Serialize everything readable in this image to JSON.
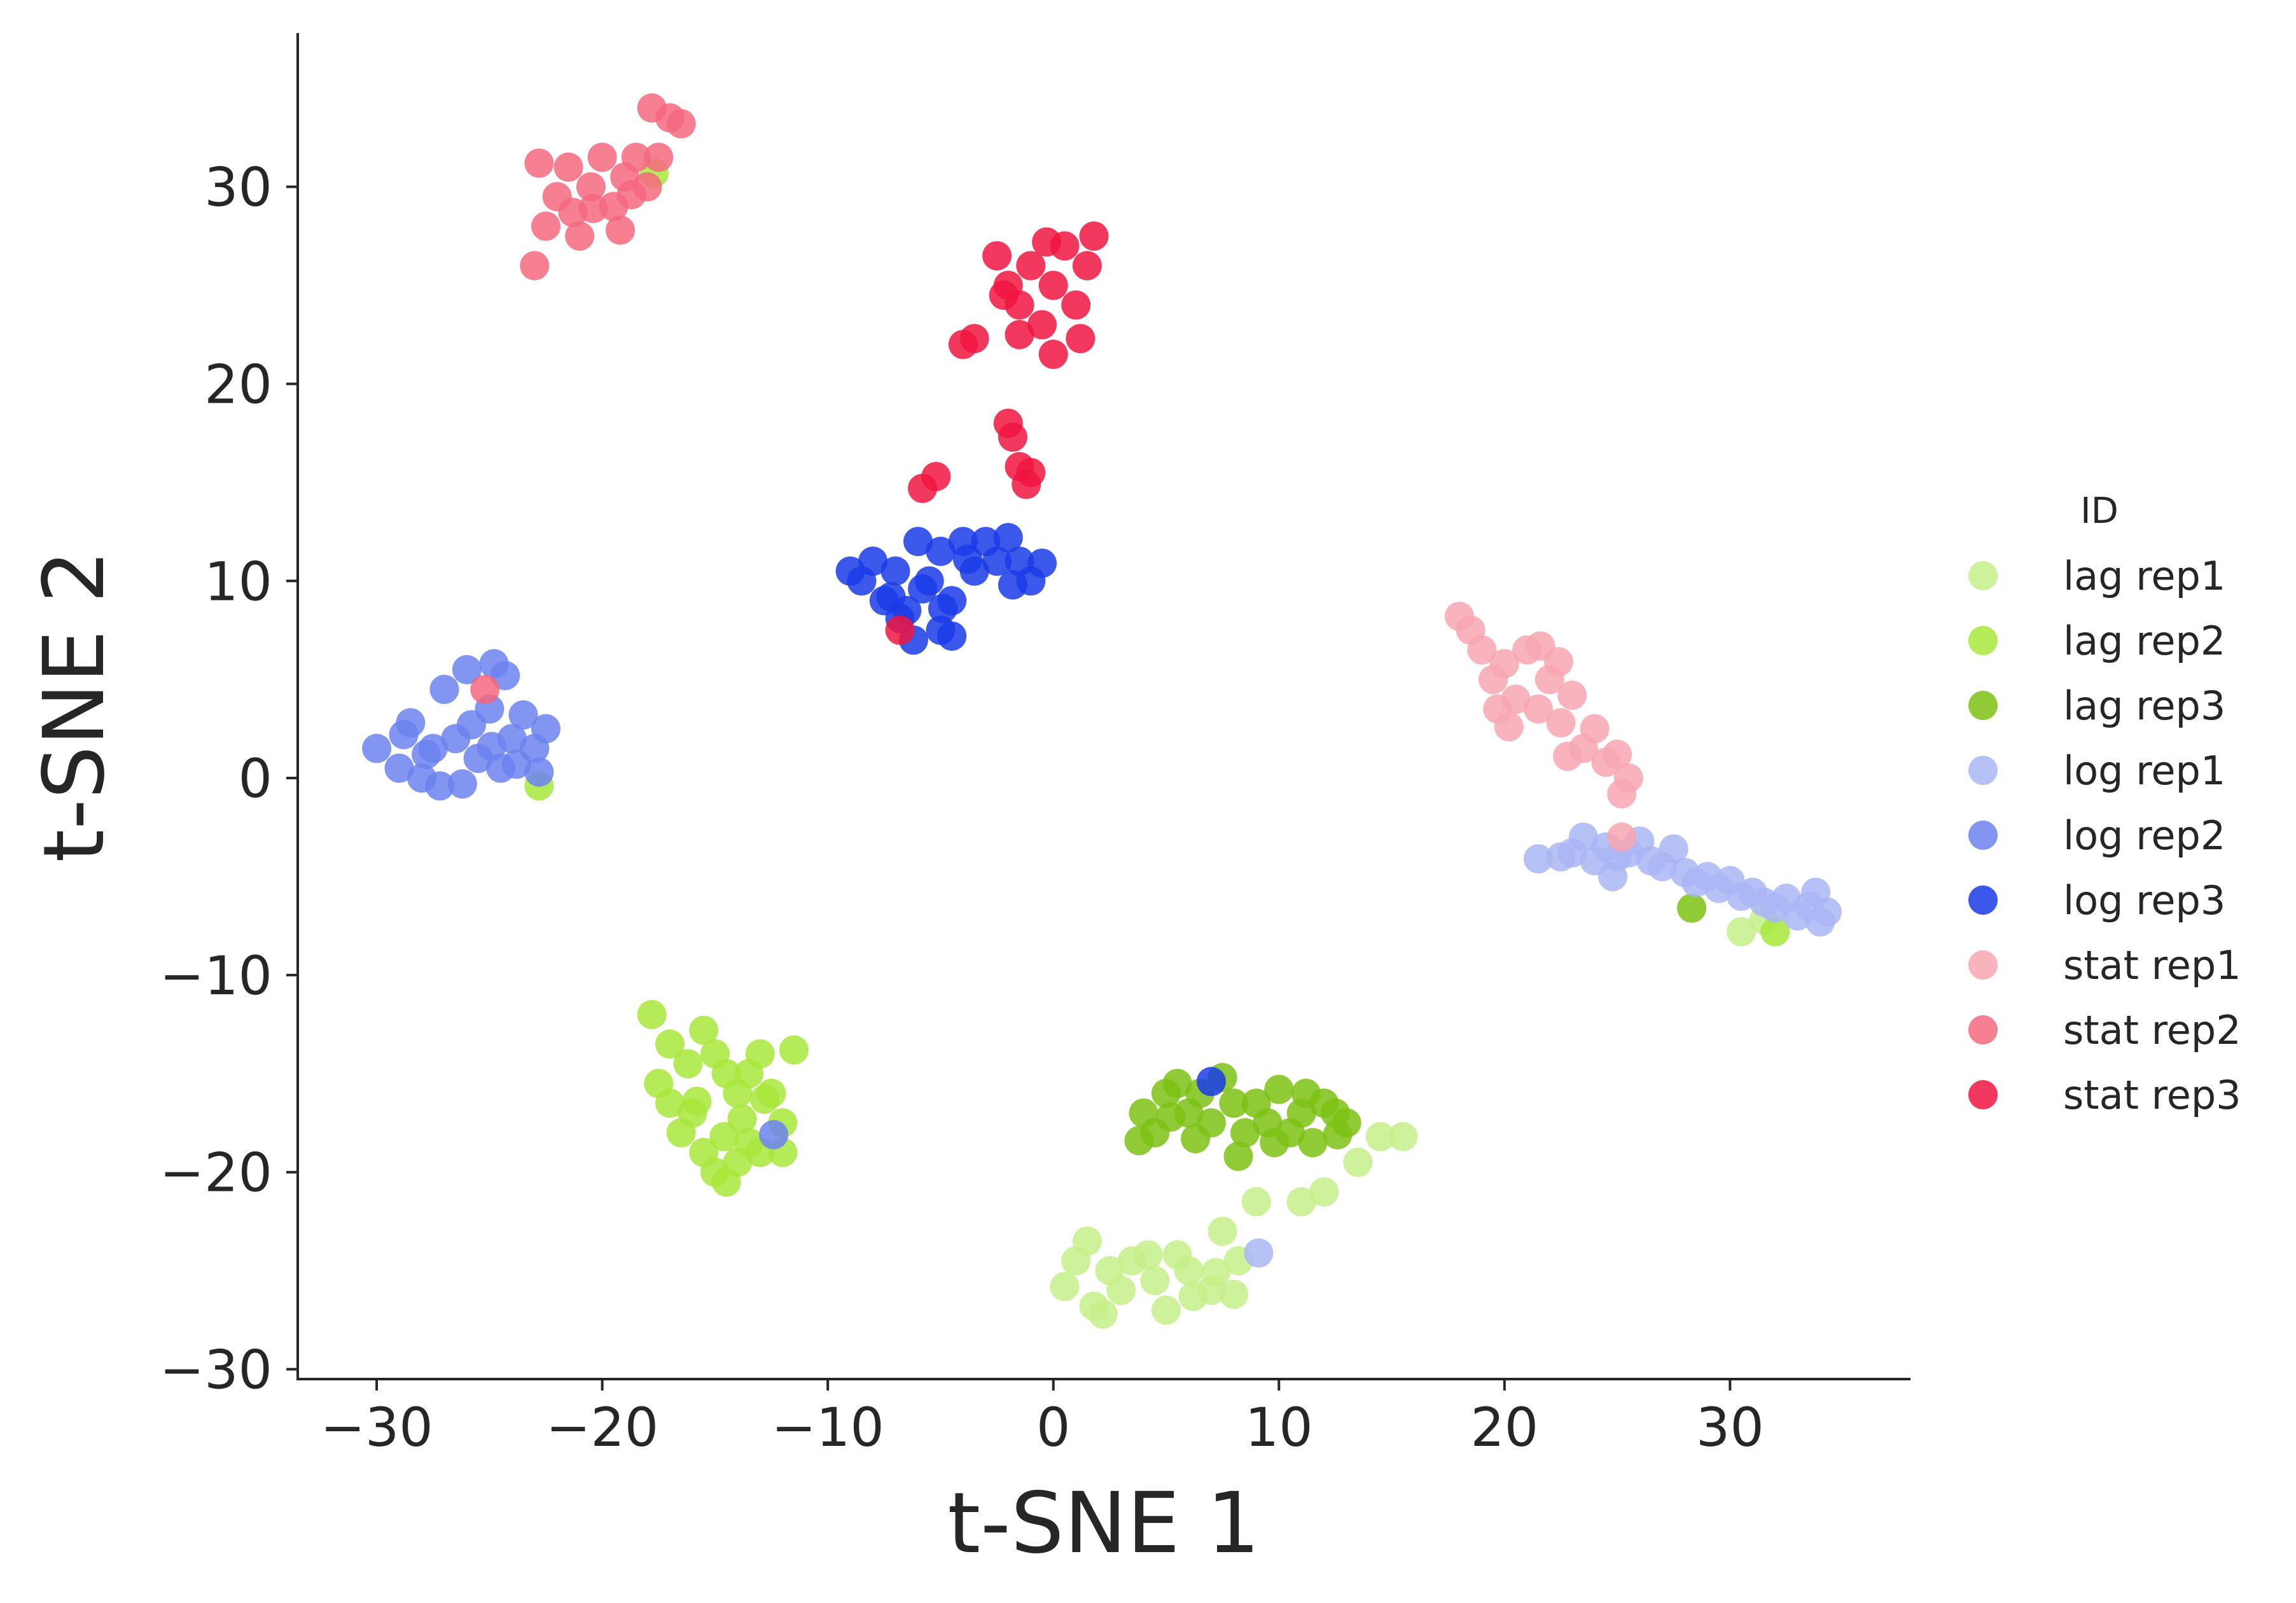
{
  "chart_data": {
    "type": "scatter",
    "xlabel": "t-SNE 1",
    "ylabel": "t-SNE 2",
    "xlim": [
      -33.5,
      38
    ],
    "ylim": [
      -30.5,
      37.8
    ],
    "xticks": [
      -30,
      -20,
      -10,
      0,
      10,
      20,
      30
    ],
    "yticks": [
      -30,
      -20,
      -10,
      0,
      10,
      20,
      30
    ],
    "x_tick_labels": [
      "−30",
      "−20",
      "−10",
      "0",
      "10",
      "20",
      "30"
    ],
    "y_tick_labels": [
      "−30",
      "−20",
      "−10",
      "0",
      "10",
      "20",
      "30"
    ],
    "grid": false,
    "legend": {
      "title": "ID",
      "placement": "right"
    },
    "series": [
      {
        "name": "lag rep1",
        "color": "#c5f08a",
        "points": [
          [
            1,
            -24.5
          ],
          [
            1.5,
            -23.5
          ],
          [
            2.5,
            -25
          ],
          [
            3,
            -26
          ],
          [
            3.5,
            -24.5
          ],
          [
            4.5,
            -25.5
          ],
          [
            5,
            -27
          ],
          [
            6,
            -25
          ],
          [
            7,
            -26
          ],
          [
            0.5,
            -25.8
          ],
          [
            1.8,
            -26.8
          ],
          [
            2.2,
            -27.2
          ],
          [
            4.2,
            -24.2
          ],
          [
            5.5,
            -24.2
          ],
          [
            6.2,
            -26.3
          ],
          [
            7.2,
            -25.1
          ],
          [
            8,
            -26.2
          ],
          [
            8.2,
            -24.5
          ],
          [
            7.5,
            -23
          ],
          [
            9,
            -21.5
          ],
          [
            11,
            -21.5
          ],
          [
            12,
            -21
          ],
          [
            13.5,
            -19.5
          ],
          [
            14.5,
            -18.2
          ],
          [
            15.5,
            -18.2
          ],
          [
            30.5,
            -7.8
          ],
          [
            31.5,
            -7.2
          ]
        ]
      },
      {
        "name": "lag rep2",
        "color": "#a8e83c",
        "points": [
          [
            -17.8,
            -12
          ],
          [
            -17,
            -13.5
          ],
          [
            -16.2,
            -14.5
          ],
          [
            -15.5,
            -12.8
          ],
          [
            -15,
            -14
          ],
          [
            -14.5,
            -15
          ],
          [
            -14,
            -16
          ],
          [
            -13.5,
            -15
          ],
          [
            -13,
            -14
          ],
          [
            -12.5,
            -16
          ],
          [
            -12,
            -17.5
          ],
          [
            -11.5,
            -13.8
          ],
          [
            -17.5,
            -15.5
          ],
          [
            -17,
            -16.5
          ],
          [
            -16.5,
            -18
          ],
          [
            -16,
            -17
          ],
          [
            -15.5,
            -19
          ],
          [
            -15,
            -20
          ],
          [
            -14.5,
            -20.5
          ],
          [
            -14,
            -19.5
          ],
          [
            -13.5,
            -18.5
          ],
          [
            -13,
            -19
          ],
          [
            -12,
            -19
          ],
          [
            -12.8,
            -16.3
          ],
          [
            -15.8,
            -16.4
          ],
          [
            -14.6,
            -18.2
          ],
          [
            -13.8,
            -17.3
          ],
          [
            -22.8,
            -0.4
          ],
          [
            -17.7,
            30.7
          ],
          [
            32,
            -7.8
          ]
        ]
      },
      {
        "name": "lag rep3",
        "color": "#7dc214",
        "points": [
          [
            4,
            -17
          ],
          [
            4.5,
            -18
          ],
          [
            5,
            -16
          ],
          [
            5.5,
            -15.5
          ],
          [
            6,
            -17
          ],
          [
            6.5,
            -16
          ],
          [
            7,
            -17.5
          ],
          [
            7.5,
            -15.2
          ],
          [
            8,
            -16.5
          ],
          [
            8.5,
            -18
          ],
          [
            9,
            -16.5
          ],
          [
            9.5,
            -17.5
          ],
          [
            10,
            -15.8
          ],
          [
            10.5,
            -18
          ],
          [
            11,
            -17
          ],
          [
            11.5,
            -18.5
          ],
          [
            12,
            -16.5
          ],
          [
            12.5,
            -17
          ],
          [
            13,
            -17.5
          ],
          [
            3.8,
            -18.4
          ],
          [
            6.3,
            -18.3
          ],
          [
            8.2,
            -19.2
          ],
          [
            9.8,
            -18.5
          ],
          [
            11.2,
            -16
          ],
          [
            12.6,
            -18.1
          ],
          [
            5.2,
            -17.2
          ],
          [
            28.3,
            -6.6
          ]
        ]
      },
      {
        "name": "log rep1",
        "color": "#a9b6f5",
        "points": [
          [
            21.5,
            -4.1
          ],
          [
            22.5,
            -4
          ],
          [
            23,
            -3.8
          ],
          [
            23.5,
            -3
          ],
          [
            24,
            -4.2
          ],
          [
            24.5,
            -3.5
          ],
          [
            25,
            -4
          ],
          [
            25.5,
            -3.8
          ],
          [
            26,
            -3.2
          ],
          [
            26.5,
            -4.2
          ],
          [
            27,
            -4.5
          ],
          [
            27.5,
            -3.6
          ],
          [
            28,
            -4.8
          ],
          [
            28.5,
            -5.3
          ],
          [
            29,
            -5
          ],
          [
            29.5,
            -5.6
          ],
          [
            30,
            -5.2
          ],
          [
            30.5,
            -6
          ],
          [
            31,
            -5.8
          ],
          [
            31.5,
            -6.3
          ],
          [
            32,
            -6.6
          ],
          [
            32.5,
            -6.1
          ],
          [
            33,
            -7
          ],
          [
            33.5,
            -6.5
          ],
          [
            34,
            -7.3
          ],
          [
            34.3,
            -6.8
          ],
          [
            33.8,
            -5.8
          ],
          [
            24.8,
            -5
          ],
          [
            9.1,
            -24.1
          ]
        ]
      },
      {
        "name": "log rep2",
        "color": "#6b83ef",
        "points": [
          [
            -30,
            1.5
          ],
          [
            -29,
            0.5
          ],
          [
            -28.5,
            2.8
          ],
          [
            -28,
            0
          ],
          [
            -27.5,
            1.5
          ],
          [
            -27,
            4.5
          ],
          [
            -26.5,
            2
          ],
          [
            -26,
            5.5
          ],
          [
            -25.5,
            1
          ],
          [
            -25,
            3.5
          ],
          [
            -24.5,
            0.5
          ],
          [
            -24,
            2
          ],
          [
            -23.5,
            3.2
          ],
          [
            -23,
            1.5
          ],
          [
            -22.5,
            2.5
          ],
          [
            -24.8,
            5.8
          ],
          [
            -24.3,
            5.2
          ],
          [
            -26.2,
            -0.3
          ],
          [
            -27.2,
            -0.4
          ],
          [
            -28.8,
            2.2
          ],
          [
            -27.8,
            1.2
          ],
          [
            -25.8,
            2.7
          ],
          [
            -24.9,
            1.6
          ],
          [
            -23.8,
            0.7
          ],
          [
            -22.8,
            0.3
          ],
          [
            -12.4,
            -18.1
          ]
        ]
      },
      {
        "name": "log rep3",
        "color": "#1a3be8",
        "points": [
          [
            -9,
            10.5
          ],
          [
            -8.5,
            10
          ],
          [
            -8,
            11
          ],
          [
            -7.5,
            9
          ],
          [
            -7,
            10.5
          ],
          [
            -6.5,
            8.5
          ],
          [
            -6,
            12
          ],
          [
            -5.5,
            10
          ],
          [
            -5,
            11.5
          ],
          [
            -4.5,
            9
          ],
          [
            -4,
            12
          ],
          [
            -3.5,
            10.5
          ],
          [
            -3,
            12
          ],
          [
            -2.5,
            11
          ],
          [
            -2,
            12.2
          ],
          [
            -1.5,
            11
          ],
          [
            -1,
            10
          ],
          [
            -0.5,
            10.9
          ],
          [
            -6.2,
            7
          ],
          [
            -5,
            7.5
          ],
          [
            -4.5,
            7.2
          ],
          [
            -7.2,
            9.2
          ],
          [
            -6.8,
            8.1
          ],
          [
            -5.8,
            9.6
          ],
          [
            -4.9,
            8.6
          ],
          [
            -3.8,
            11.1
          ],
          [
            -1.8,
            9.8
          ],
          [
            7,
            -15.4
          ]
        ]
      },
      {
        "name": "stat rep1",
        "color": "#f7a6b2",
        "points": [
          [
            18,
            8.2
          ],
          [
            18.5,
            7.5
          ],
          [
            19,
            6.5
          ],
          [
            19.5,
            5
          ],
          [
            20,
            5.8
          ],
          [
            20.5,
            4
          ],
          [
            21,
            6.5
          ],
          [
            21.5,
            3.5
          ],
          [
            22,
            5
          ],
          [
            22.5,
            2.8
          ],
          [
            23,
            4.2
          ],
          [
            23.5,
            1.5
          ],
          [
            24,
            2.5
          ],
          [
            24.5,
            0.8
          ],
          [
            25,
            1.2
          ],
          [
            25.5,
            0
          ],
          [
            25.2,
            -0.8
          ],
          [
            20.2,
            2.6
          ],
          [
            21.6,
            6.7
          ],
          [
            22.4,
            5.9
          ],
          [
            22.8,
            1.1
          ],
          [
            19.7,
            3.5
          ],
          [
            25.2,
            -3
          ]
        ]
      },
      {
        "name": "stat rep2",
        "color": "#f4687f",
        "points": [
          [
            -23,
            26
          ],
          [
            -22.5,
            28
          ],
          [
            -22,
            29.5
          ],
          [
            -21.5,
            31
          ],
          [
            -21,
            27.5
          ],
          [
            -20.5,
            30
          ],
          [
            -20,
            31.5
          ],
          [
            -19.5,
            29
          ],
          [
            -19,
            30.5
          ],
          [
            -18.5,
            31.5
          ],
          [
            -18,
            30
          ],
          [
            -17.5,
            31.5
          ],
          [
            -17,
            33.5
          ],
          [
            -16.5,
            33.2
          ],
          [
            -17.8,
            34
          ],
          [
            -22.8,
            31.2
          ],
          [
            -21.3,
            28.7
          ],
          [
            -20.4,
            28.9
          ],
          [
            -19.2,
            27.8
          ],
          [
            -18.7,
            29.6
          ],
          [
            -25.2,
            4.5
          ]
        ]
      },
      {
        "name": "stat rep3",
        "color": "#f0153f",
        "points": [
          [
            -2.5,
            26.5
          ],
          [
            -2,
            25
          ],
          [
            -1.5,
            24
          ],
          [
            -1,
            26
          ],
          [
            -0.5,
            23
          ],
          [
            0,
            25
          ],
          [
            0.5,
            27
          ],
          [
            1,
            24
          ],
          [
            1.5,
            26
          ],
          [
            1.8,
            27.5
          ],
          [
            -1.5,
            22.5
          ],
          [
            0,
            21.5
          ],
          [
            1.2,
            22.3
          ],
          [
            -0.3,
            27.2
          ],
          [
            -2.2,
            24.5
          ],
          [
            -4,
            22
          ],
          [
            -3.5,
            22.3
          ],
          [
            -2,
            18
          ],
          [
            -1.8,
            17.3
          ],
          [
            -1.5,
            15.8
          ],
          [
            -1,
            15.5
          ],
          [
            -1.2,
            14.9
          ],
          [
            -5.8,
            14.7
          ],
          [
            -5.2,
            15.3
          ],
          [
            -6.8,
            7.5
          ]
        ]
      }
    ]
  }
}
